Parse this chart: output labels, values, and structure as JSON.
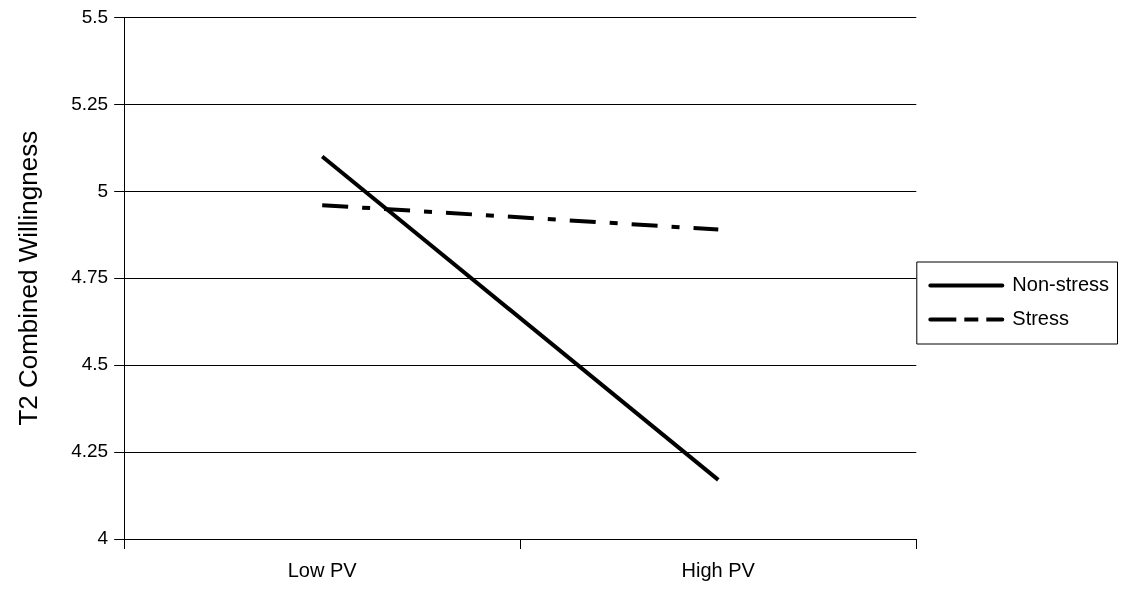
{
  "chart_data": {
    "type": "line",
    "ylabel": "T2 Combined Willingness",
    "categories": [
      "Low PV",
      "High PV"
    ],
    "series": [
      {
        "name": "Non-stress",
        "color": "#000000",
        "values": [
          5.1,
          4.17
        ],
        "line_style": "solid"
      },
      {
        "name": "Stress",
        "color": "#000000",
        "values": [
          4.96,
          4.89
        ],
        "line_style": "dashed"
      }
    ],
    "ylim": [
      4,
      5.5
    ],
    "yticks": [
      4,
      4.25,
      4.5,
      4.75,
      5,
      5.25,
      5.5
    ],
    "grid": "y",
    "legend": "right",
    "marker": "none"
  }
}
